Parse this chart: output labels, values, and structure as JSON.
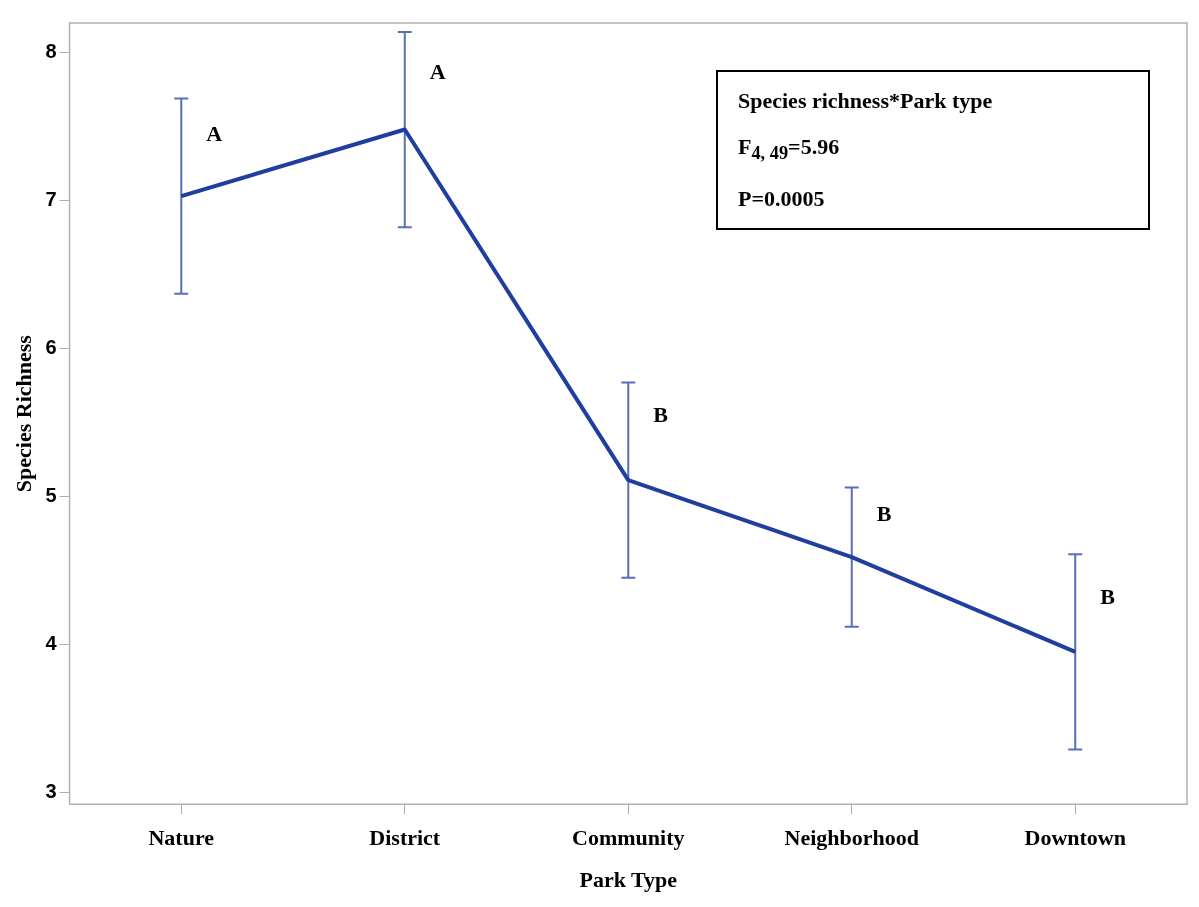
{
  "chart_data": {
    "type": "line",
    "xlabel": "Park Type",
    "ylabel": "Species Richness",
    "categories": [
      "Nature",
      "District",
      "Community",
      "Neighborhood",
      "Downtown"
    ],
    "series": [
      {
        "color": "#1f3fa0",
        "values": [
          7.03,
          7.48,
          5.11,
          4.59,
          3.95
        ],
        "errors": [
          0.66,
          0.66,
          0.66,
          0.47,
          0.66
        ]
      }
    ],
    "ylim": [
      2.92,
      8.2
    ],
    "yticks": [
      3,
      4,
      5,
      6,
      7,
      8
    ],
    "grid": false,
    "legend": false,
    "marker": "none",
    "line_style": "solid",
    "annotations": [
      {
        "text": "A",
        "x": "Nature",
        "y": 7.44
      },
      {
        "text": "A",
        "x": "District",
        "y": 7.86
      },
      {
        "text": "B",
        "x": "Community",
        "y": 5.54
      },
      {
        "text": "B",
        "x": "Neighborhood",
        "y": 4.87
      },
      {
        "text": "B",
        "x": "Downtown",
        "y": 4.31
      },
      "Species richness*Park type",
      "F$_{4, 49}$=5.96",
      "P=0.0005"
    ]
  }
}
